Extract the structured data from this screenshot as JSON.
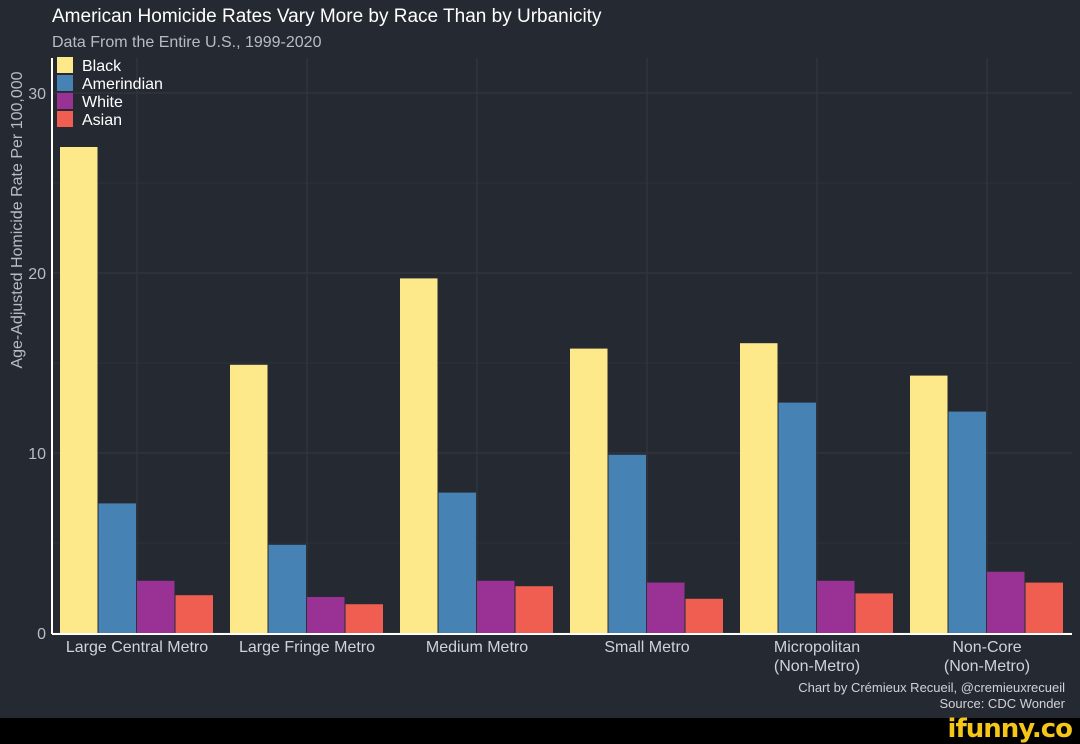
{
  "chart_data": {
    "type": "bar",
    "title": "American Homicide Rates Vary More by Race Than by Urbanicity",
    "subtitle": "Data From the Entire U.S., 1999-2020",
    "xlabel": "",
    "ylabel": "Age-Adjusted Homicide Rate Per 100,000",
    "ylim": [
      0,
      32
    ],
    "yticks": [
      0,
      10,
      20,
      30
    ],
    "grid": true,
    "legend_placement": "top-left",
    "categories": [
      [
        "Large Central Metro"
      ],
      [
        "Large Fringe Metro"
      ],
      [
        "Medium Metro"
      ],
      [
        "Small Metro"
      ],
      [
        "Micropolitan",
        "(Non-Metro)"
      ],
      [
        "Non-Core",
        "(Non-Metro)"
      ]
    ],
    "series": [
      {
        "name": "Black",
        "color": "#fde98a",
        "values": [
          27.0,
          14.9,
          19.7,
          15.8,
          16.1,
          14.3
        ]
      },
      {
        "name": "Amerindian",
        "color": "#4682b4",
        "values": [
          7.2,
          4.9,
          7.8,
          9.9,
          12.8,
          12.3
        ]
      },
      {
        "name": "White",
        "color": "#993294",
        "values": [
          2.9,
          2.0,
          2.9,
          2.8,
          2.9,
          3.4
        ]
      },
      {
        "name": "Asian",
        "color": "#ef5e50",
        "values": [
          2.1,
          1.6,
          2.6,
          1.9,
          2.2,
          2.8
        ]
      }
    ],
    "caption": [
      "Chart by Crémieux Recueil, @cremieuxrecueil",
      "Source: CDC Wonder"
    ]
  },
  "watermark": "ifunny.co"
}
